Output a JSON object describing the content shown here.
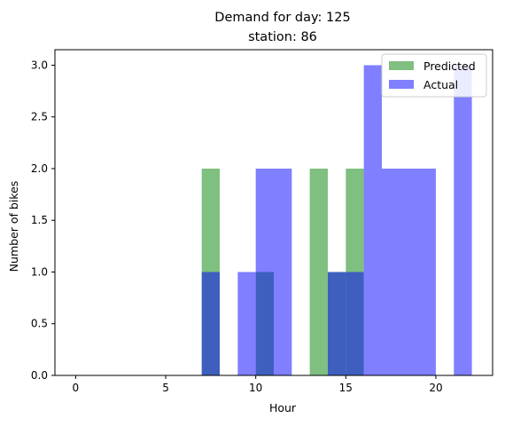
{
  "chart_data": {
    "type": "bar",
    "title_line1": "Demand for day: 125",
    "title_line2": "station: 86",
    "xlabel": "Hour",
    "ylabel": "Number of bikes",
    "xlim": [
      -1.15,
      23.15
    ],
    "ylim": [
      0,
      3.15
    ],
    "xticks": [
      0,
      5,
      10,
      15,
      20
    ],
    "xtick_labels": [
      "0",
      "5",
      "10",
      "15",
      "20"
    ],
    "yticks": [
      0.0,
      0.5,
      1.0,
      1.5,
      2.0,
      2.5,
      3.0
    ],
    "ytick_labels": [
      "0.0",
      "0.5",
      "1.0",
      "1.5",
      "2.0",
      "2.5",
      "3.0"
    ],
    "legend_position": "top-right",
    "series": [
      {
        "name": "Predicted",
        "color": "#008000",
        "alpha": 0.5,
        "bins": [
          {
            "x0": 7,
            "x1": 8,
            "value": 2
          },
          {
            "x0": 10,
            "x1": 11,
            "value": 1
          },
          {
            "x0": 13,
            "x1": 14,
            "value": 2
          },
          {
            "x0": 14,
            "x1": 15,
            "value": 1
          },
          {
            "x0": 15,
            "x1": 16,
            "value": 2
          }
        ]
      },
      {
        "name": "Actual",
        "color": "#0000ff",
        "alpha": 0.5,
        "bins": [
          {
            "x0": 7,
            "x1": 8,
            "value": 1
          },
          {
            "x0": 9,
            "x1": 10,
            "value": 1
          },
          {
            "x0": 10,
            "x1": 12,
            "value": 2
          },
          {
            "x0": 14,
            "x1": 15,
            "value": 1
          },
          {
            "x0": 15,
            "x1": 16,
            "value": 1
          },
          {
            "x0": 16,
            "x1": 17,
            "value": 3
          },
          {
            "x0": 17,
            "x1": 20,
            "value": 2
          },
          {
            "x0": 21,
            "x1": 22,
            "value": 3
          }
        ]
      }
    ]
  }
}
